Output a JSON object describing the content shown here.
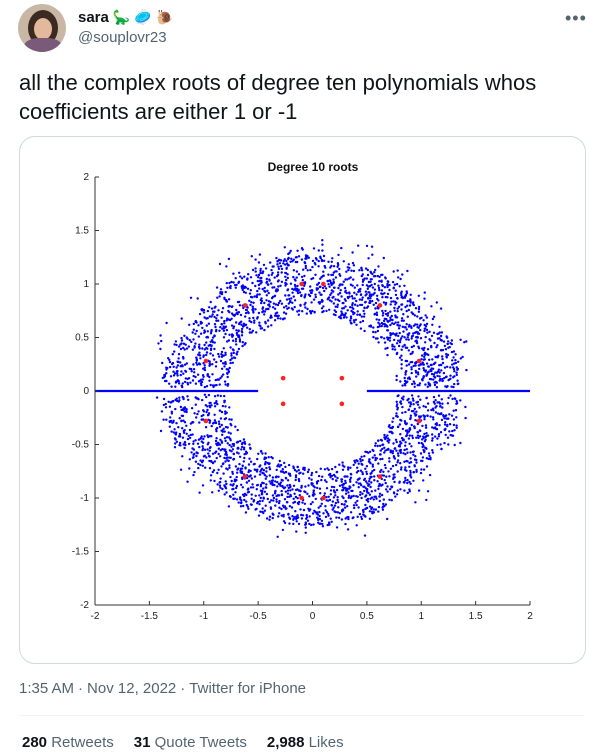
{
  "user": {
    "name": "sara",
    "emojis": [
      "🦕",
      "🥏",
      "🐌"
    ],
    "handle": "@souplovr23"
  },
  "tweet": {
    "more_label": "•••",
    "text": "all the complex roots of degree ten polynomials whos coefficients are either 1 or -1",
    "time": "1:35 AM",
    "sep1": "·",
    "date": "Nov 12, 2022",
    "sep2": "·",
    "source": "Twitter for iPhone"
  },
  "stats": {
    "retweets_count": "280",
    "retweets_label": "Retweets",
    "quotes_count": "31",
    "quotes_label": "Quote Tweets",
    "likes_count": "2,988",
    "likes_label": "Likes"
  },
  "colors": {
    "points": "#0000ff",
    "highlight": "#ff2020"
  },
  "chart_data": {
    "type": "scatter",
    "title": "Degree 10 roots",
    "xlabel": "",
    "ylabel": "",
    "xlim": [
      -2,
      2
    ],
    "ylim": [
      -2,
      2
    ],
    "xticks": [
      -2,
      -1.5,
      -1,
      -0.5,
      0,
      0.5,
      1,
      1.5,
      2
    ],
    "yticks": [
      2,
      1.5,
      1,
      0.5,
      0,
      -0.5,
      -1,
      -1.5,
      -2
    ],
    "xtick_labels": [
      "-2",
      "-1.5",
      "-1",
      "-0.5",
      "0",
      "0.5",
      "1",
      "1.5",
      "2"
    ],
    "ytick_labels": [
      "2",
      "1.5",
      "1",
      "0.5",
      "0",
      "-0.5",
      "-1",
      "-1.5",
      "-2"
    ],
    "grid": false,
    "legend": "none",
    "series": [
      {
        "values_note": "dense annulus of complex roots, radius approx 0.7 to 1.4, plus real-axis segments",
        "color": "#0000ff"
      },
      {
        "color": "#ff2020"
      }
    ],
    "real_axis_segments": [
      [
        -2,
        -0.5
      ],
      [
        0.5,
        2
      ]
    ],
    "highlight_points": [
      [
        0.27,
        0.12
      ],
      [
        -0.27,
        0.12
      ],
      [
        0.27,
        -0.12
      ],
      [
        -0.27,
        -0.12
      ],
      [
        -0.1,
        1.0
      ],
      [
        0.1,
        1.0
      ],
      [
        -0.1,
        -1.0
      ],
      [
        0.1,
        -1.0
      ],
      [
        -0.62,
        0.8
      ],
      [
        0.62,
        0.8
      ],
      [
        -0.62,
        -0.8
      ],
      [
        0.62,
        -0.8
      ],
      [
        -0.98,
        0.28
      ],
      [
        0.98,
        0.28
      ],
      [
        -0.98,
        -0.28
      ],
      [
        0.98,
        -0.28
      ]
    ]
  }
}
